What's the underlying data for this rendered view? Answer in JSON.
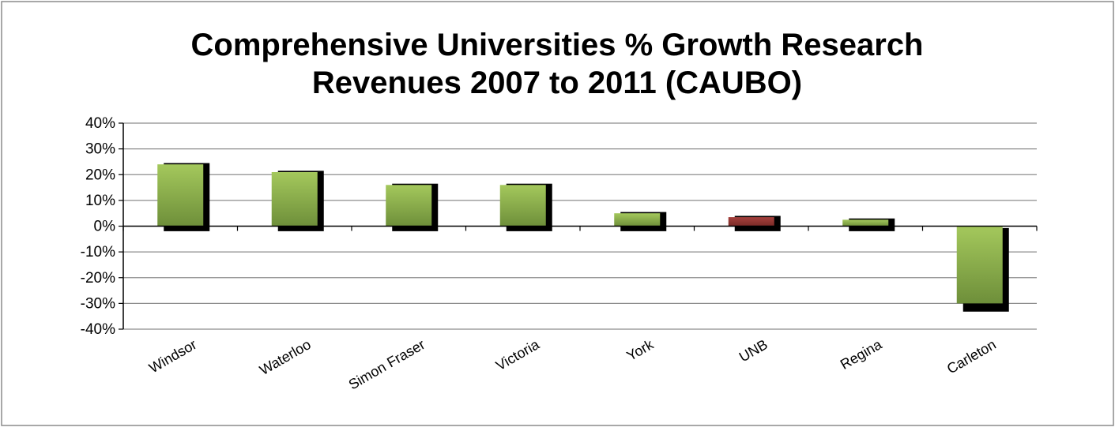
{
  "chart_data": {
    "type": "bar",
    "title_lines": [
      "Comprehensive Universities % Growth Research",
      "Revenues 2007 to 2011 (CAUBO)"
    ],
    "categories": [
      "Windsor",
      "Waterloo",
      "Simon Fraser",
      "Victoria",
      "York",
      "UNB",
      "Regina",
      "Carleton"
    ],
    "values": [
      24,
      21,
      16,
      16,
      5,
      3.5,
      2.5,
      -30
    ],
    "highlight": [
      "UNB"
    ],
    "ylim": [
      -40,
      40
    ],
    "yticks": [
      40,
      30,
      20,
      10,
      0,
      -10,
      -20,
      -30,
      -40
    ],
    "ytick_labels": [
      "40%",
      "30%",
      "20%",
      "10%",
      "0%",
      "-10%",
      "-20%",
      "-30%",
      "-40%"
    ],
    "grid": true,
    "legend": "none",
    "colors": {
      "bar_light": "#a4c85c",
      "bar_dark": "#6e8f3a",
      "highlight_light": "#a4403c",
      "highlight_dark": "#7a2a27",
      "shadow": "#000000",
      "grid": "#8c8c8c",
      "axis": "#000000"
    }
  }
}
